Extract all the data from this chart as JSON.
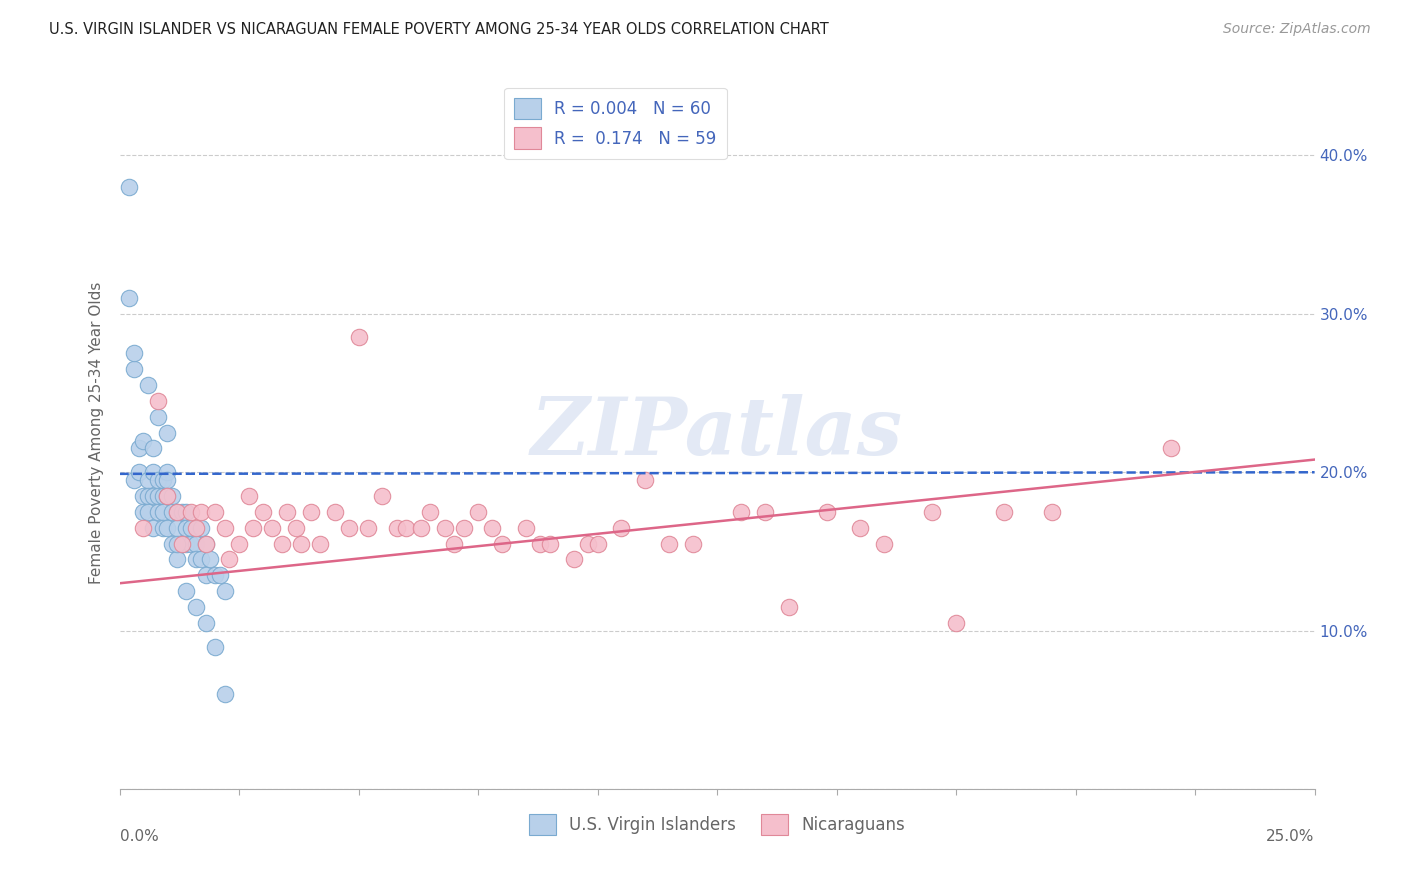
{
  "title": "U.S. VIRGIN ISLANDER VS NICARAGUAN FEMALE POVERTY AMONG 25-34 YEAR OLDS CORRELATION CHART",
  "source": "Source: ZipAtlas.com",
  "ylabel": "Female Poverty Among 25-34 Year Olds",
  "xlim": [
    0.0,
    0.25
  ],
  "ylim": [
    0.0,
    0.45
  ],
  "yticks": [
    0.0,
    0.1,
    0.2,
    0.3,
    0.4
  ],
  "right_ytick_labels": [
    "",
    "10.0%",
    "20.0%",
    "30.0%",
    "40.0%"
  ],
  "series1_label": "U.S. Virgin Islanders",
  "series2_label": "Nicaraguans",
  "series1_face": "#b8d0ea",
  "series1_edge": "#7aaad0",
  "series2_face": "#f5bfcc",
  "series2_edge": "#e08898",
  "trend1_color": "#3366cc",
  "trend2_color": "#dd6688",
  "watermark": "ZIPatlas",
  "watermark_color": "#ccd8ee",
  "bg_color": "#ffffff",
  "grid_color": "#cccccc",
  "title_color": "#222222",
  "axis_color": "#666666",
  "right_axis_color": "#4466bb",
  "vi_x": [
    0.002,
    0.002,
    0.003,
    0.003,
    0.004,
    0.004,
    0.005,
    0.005,
    0.005,
    0.006,
    0.006,
    0.006,
    0.007,
    0.007,
    0.007,
    0.007,
    0.008,
    0.008,
    0.008,
    0.009,
    0.009,
    0.009,
    0.009,
    0.01,
    0.01,
    0.01,
    0.01,
    0.011,
    0.011,
    0.011,
    0.012,
    0.012,
    0.012,
    0.013,
    0.013,
    0.014,
    0.014,
    0.014,
    0.015,
    0.015,
    0.016,
    0.016,
    0.017,
    0.017,
    0.018,
    0.018,
    0.019,
    0.02,
    0.021,
    0.022,
    0.003,
    0.006,
    0.008,
    0.01,
    0.012,
    0.014,
    0.016,
    0.018,
    0.02,
    0.022
  ],
  "vi_y": [
    0.38,
    0.31,
    0.265,
    0.195,
    0.2,
    0.215,
    0.22,
    0.185,
    0.175,
    0.195,
    0.185,
    0.175,
    0.2,
    0.215,
    0.185,
    0.165,
    0.195,
    0.185,
    0.175,
    0.195,
    0.185,
    0.175,
    0.165,
    0.2,
    0.195,
    0.185,
    0.165,
    0.185,
    0.175,
    0.155,
    0.175,
    0.165,
    0.145,
    0.175,
    0.155,
    0.175,
    0.165,
    0.155,
    0.165,
    0.155,
    0.155,
    0.145,
    0.165,
    0.145,
    0.155,
    0.135,
    0.145,
    0.135,
    0.135,
    0.125,
    0.275,
    0.255,
    0.235,
    0.225,
    0.155,
    0.125,
    0.115,
    0.105,
    0.09,
    0.06
  ],
  "ni_x": [
    0.005,
    0.008,
    0.01,
    0.012,
    0.013,
    0.015,
    0.016,
    0.017,
    0.018,
    0.02,
    0.022,
    0.023,
    0.025,
    0.027,
    0.028,
    0.03,
    0.032,
    0.034,
    0.035,
    0.037,
    0.038,
    0.04,
    0.042,
    0.045,
    0.048,
    0.05,
    0.052,
    0.055,
    0.058,
    0.06,
    0.063,
    0.065,
    0.068,
    0.07,
    0.072,
    0.075,
    0.078,
    0.08,
    0.085,
    0.088,
    0.09,
    0.095,
    0.098,
    0.1,
    0.105,
    0.11,
    0.115,
    0.12,
    0.13,
    0.135,
    0.14,
    0.148,
    0.155,
    0.16,
    0.17,
    0.175,
    0.185,
    0.195,
    0.22
  ],
  "ni_y": [
    0.165,
    0.245,
    0.185,
    0.175,
    0.155,
    0.175,
    0.165,
    0.175,
    0.155,
    0.175,
    0.165,
    0.145,
    0.155,
    0.185,
    0.165,
    0.175,
    0.165,
    0.155,
    0.175,
    0.165,
    0.155,
    0.175,
    0.155,
    0.175,
    0.165,
    0.285,
    0.165,
    0.185,
    0.165,
    0.165,
    0.165,
    0.175,
    0.165,
    0.155,
    0.165,
    0.175,
    0.165,
    0.155,
    0.165,
    0.155,
    0.155,
    0.145,
    0.155,
    0.155,
    0.165,
    0.195,
    0.155,
    0.155,
    0.175,
    0.175,
    0.115,
    0.175,
    0.165,
    0.155,
    0.175,
    0.105,
    0.175,
    0.175,
    0.215
  ],
  "vi_trend_x": [
    0.0,
    0.25
  ],
  "vi_trend_y": [
    0.199,
    0.2
  ],
  "ni_trend_x": [
    0.0,
    0.25
  ],
  "ni_trend_y": [
    0.13,
    0.208
  ]
}
